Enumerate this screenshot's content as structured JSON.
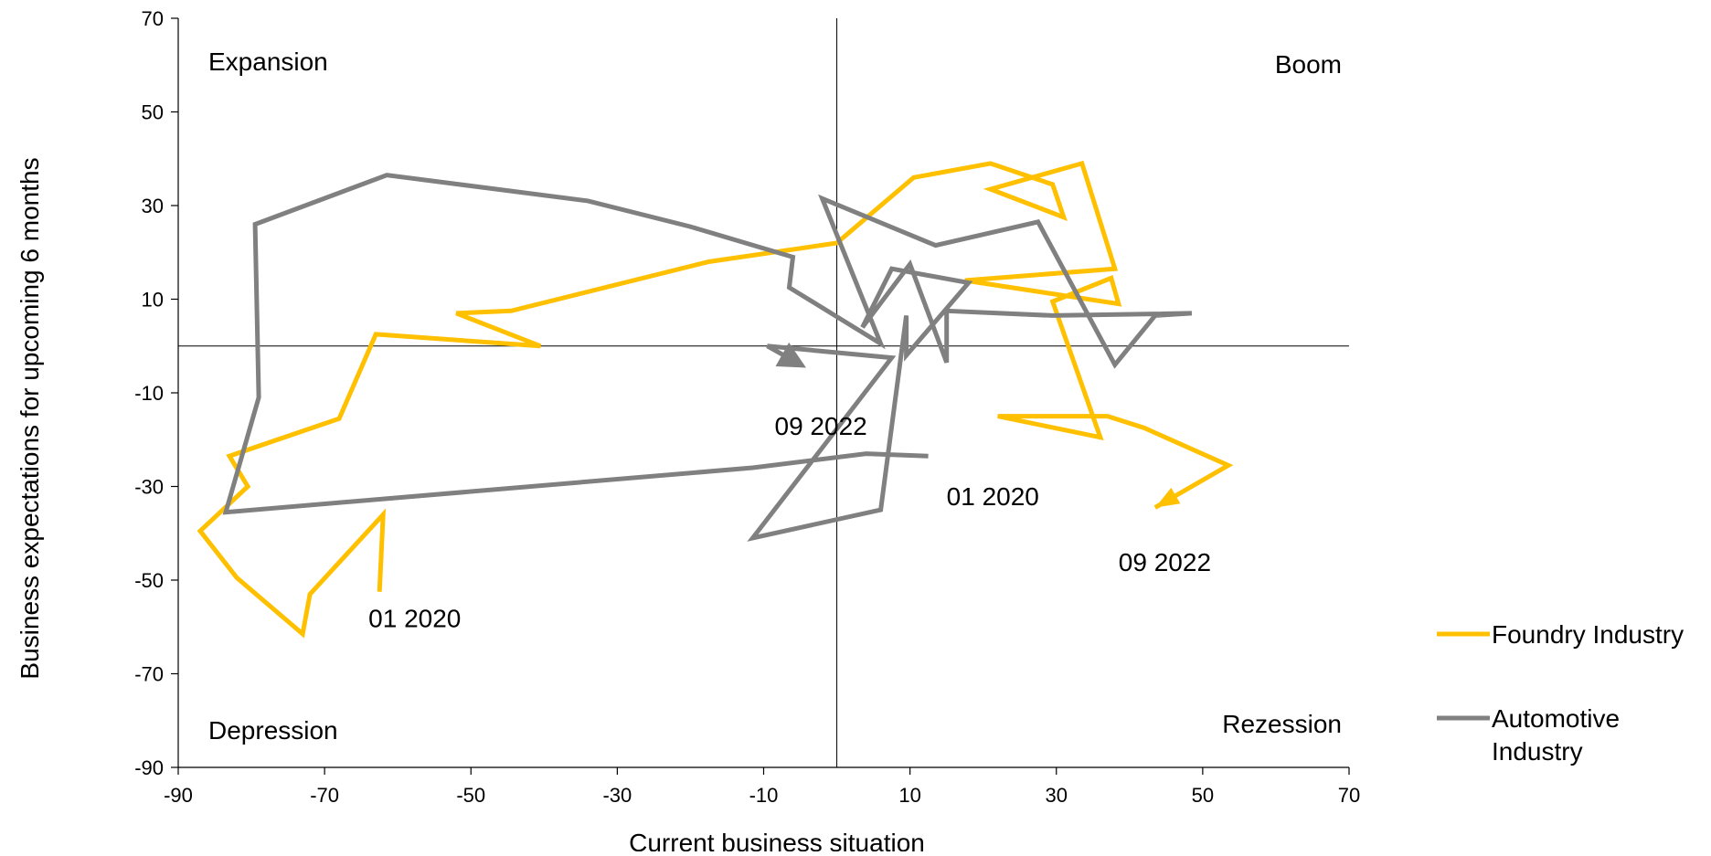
{
  "chart_data": {
    "type": "line",
    "xlabel": "Current business situation",
    "ylabel": "Business expectations for upcoming 6 months",
    "xlim": [
      -90,
      70
    ],
    "ylim": [
      -90,
      70
    ],
    "x_ticks": [
      -90,
      -70,
      -50,
      -30,
      -10,
      10,
      30,
      50,
      70
    ],
    "y_ticks": [
      -90,
      -70,
      -50,
      -30,
      -10,
      10,
      30,
      50,
      70
    ],
    "x_tick_labels": [
      "-90",
      "-70",
      "-50",
      "-30",
      "-10",
      "10",
      "30",
      "50",
      "70"
    ],
    "y_tick_labels": [
      "-90",
      "-70",
      "-50",
      "-30",
      "-10",
      "10",
      "30",
      "50",
      "70"
    ],
    "grid": false,
    "reference_lines": {
      "x": 0,
      "y": 0
    },
    "legend_position": "right",
    "quadrant_labels": {
      "top_left": "Expansion",
      "top_right": "Boom",
      "bottom_left": "Depression",
      "bottom_right": "Rezession"
    },
    "series": [
      {
        "name": "Foundry Industry",
        "color": "#FFC000",
        "arrow_at_end": false,
        "points": [
          [
            -62.5,
            -52.5
          ],
          [
            -62,
            -36
          ],
          [
            -72,
            -53
          ],
          [
            -73,
            -61.5
          ],
          [
            -82,
            -49.5
          ],
          [
            -87,
            -39.5
          ],
          [
            -80.5,
            -30
          ],
          [
            -83,
            -23.5
          ],
          [
            -68,
            -15.5
          ],
          [
            -63,
            2.5
          ],
          [
            -40.5,
            0
          ],
          [
            -52,
            7
          ],
          [
            -44.5,
            7.5
          ],
          [
            -17.5,
            18
          ],
          [
            0,
            22
          ],
          [
            10.5,
            36
          ],
          [
            21,
            39
          ],
          [
            29.5,
            34.5
          ],
          [
            31,
            27.5
          ],
          [
            21,
            33.5
          ],
          [
            33.5,
            39
          ],
          [
            38,
            16.5
          ],
          [
            17.5,
            14
          ],
          [
            38.5,
            9
          ],
          [
            37.5,
            14.5
          ],
          [
            29.5,
            9.5
          ],
          [
            36,
            -19.5
          ],
          [
            22,
            -15
          ],
          [
            37,
            -15
          ],
          [
            42,
            -17.5
          ],
          [
            53.5,
            -25.5
          ],
          [
            43.5,
            -34.5
          ]
        ]
      },
      {
        "name": "Automotive Industry",
        "color": "#808080",
        "arrow_at_end": true,
        "points": [
          [
            12.5,
            -23.5
          ],
          [
            4,
            -23
          ],
          [
            -11.5,
            -26
          ],
          [
            -83.5,
            -35.5
          ],
          [
            -79,
            -11
          ],
          [
            -79.5,
            26
          ],
          [
            -61.5,
            36.5
          ],
          [
            -34,
            31
          ],
          [
            -20,
            25.5
          ],
          [
            -6,
            19
          ],
          [
            -6.5,
            12.5
          ],
          [
            6,
            0.5
          ],
          [
            -2,
            31.5
          ],
          [
            13.5,
            21.5
          ],
          [
            27.5,
            26.5
          ],
          [
            38,
            -4
          ],
          [
            43.5,
            6.5
          ],
          [
            48.5,
            7
          ],
          [
            29.5,
            6.5
          ],
          [
            15,
            7.5
          ],
          [
            15,
            -3.5
          ],
          [
            10,
            17.5
          ],
          [
            3.5,
            4
          ],
          [
            7.5,
            16.5
          ],
          [
            18,
            13.5
          ],
          [
            9.5,
            -2
          ],
          [
            9.5,
            6.5
          ],
          [
            6,
            -35
          ],
          [
            -11.5,
            -41
          ],
          [
            7.5,
            -2.5
          ],
          [
            -9.5,
            0
          ],
          [
            -5.5,
            -3.5
          ]
        ]
      }
    ],
    "annotations": [
      {
        "text": "01 2020",
        "x": -64,
        "y": -60
      },
      {
        "text": "09 2022",
        "x": 38.5,
        "y": -48
      },
      {
        "text": "09 2022",
        "x": -8.5,
        "y": -19
      },
      {
        "text": "01 2020",
        "x": 15,
        "y": -34
      }
    ]
  }
}
